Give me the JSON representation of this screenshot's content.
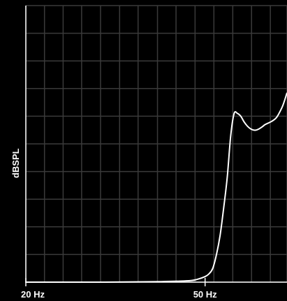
{
  "chart_data": {
    "type": "line",
    "title": "",
    "xlabel": "",
    "ylabel": "dBSPL",
    "x_scale": "log",
    "xlim": [
      20,
      76
    ],
    "ylim": [
      0,
      10
    ],
    "grid": true,
    "legend": "none",
    "x_ticks": [
      {
        "value": 20,
        "label": "20 Hz"
      },
      {
        "value": 50,
        "label": "50 Hz"
      }
    ],
    "x_gridlines": [
      20,
      22,
      24.2,
      26.6,
      29.3,
      32.3,
      35.5,
      39.2,
      43.1,
      47.5,
      52.3,
      57.6,
      63.4,
      69.8,
      76
    ],
    "y_gridlines": [
      0,
      1,
      2,
      3,
      4,
      5,
      6,
      7,
      8,
      9,
      10
    ],
    "series": [
      {
        "name": "",
        "color": "#ffffff",
        "x": [
          20,
          30,
          40,
          46,
          48,
          50,
          51,
          52,
          53,
          54,
          55,
          56,
          57,
          58,
          59,
          60,
          61,
          62,
          63,
          64,
          65,
          66,
          67,
          68,
          70,
          72,
          74,
          75,
          76
        ],
        "y": [
          0,
          0,
          0.02,
          0.05,
          0.1,
          0.2,
          0.3,
          0.5,
          1.0,
          1.7,
          2.7,
          3.8,
          5.3,
          6.1,
          6.1,
          6.0,
          5.8,
          5.65,
          5.55,
          5.5,
          5.5,
          5.55,
          5.62,
          5.7,
          5.8,
          5.95,
          6.3,
          6.55,
          6.85
        ]
      }
    ]
  }
}
